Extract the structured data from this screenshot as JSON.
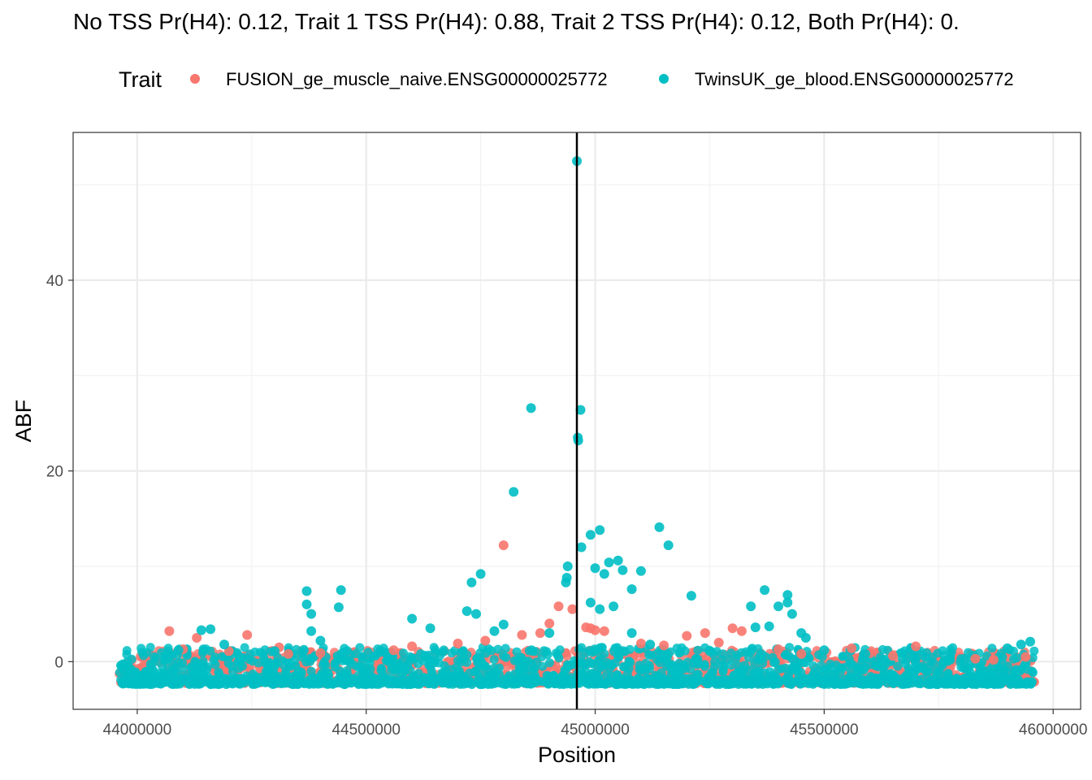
{
  "chart_data": {
    "type": "scatter",
    "title": "No TSS Pr(H4): 0.12, Trait 1 TSS Pr(H4): 0.88, Trait 2 TSS Pr(H4): 0.12, Both Pr(H4): 0.",
    "xlabel": "Position",
    "ylabel": "ABF",
    "xlim": [
      43860000,
      46060000
    ],
    "ylim": [
      -5,
      55.5
    ],
    "x_ticks": [
      44000000,
      44500000,
      45000000,
      45500000,
      46000000
    ],
    "x_tick_labels": [
      "44000000",
      "44500000",
      "45000000",
      "45500000",
      "46000000"
    ],
    "y_ticks": [
      0,
      20,
      40
    ],
    "y_tick_labels": [
      "0",
      "20",
      "40"
    ],
    "grid": true,
    "vline_x": 44960000,
    "legend": {
      "title": "Trait",
      "position": "top"
    },
    "series": [
      {
        "name": "FUSION_ge_muscle_naive.ENSG00000025772",
        "color": "#F8766D",
        "points": [
          [
            44070000,
            3.2
          ],
          [
            44130000,
            2.5
          ],
          [
            44240000,
            2.8
          ],
          [
            44310000,
            1.5
          ],
          [
            44330000,
            0.8
          ],
          [
            44560000,
            1.2
          ],
          [
            44800000,
            12.2
          ],
          [
            44840000,
            2.8
          ],
          [
            44880000,
            3.0
          ],
          [
            44900000,
            4.0
          ],
          [
            44920000,
            5.8
          ],
          [
            44950000,
            5.5
          ],
          [
            44980000,
            3.6
          ],
          [
            44990000,
            3.5
          ],
          [
            45000000,
            3.3
          ],
          [
            45020000,
            3.2
          ],
          [
            45200000,
            2.7
          ],
          [
            45240000,
            3.0
          ],
          [
            45270000,
            2.0
          ],
          [
            45300000,
            3.5
          ],
          [
            45320000,
            3.2
          ],
          [
            45560000,
            1.4
          ],
          [
            45700000,
            1.6
          ],
          [
            45830000,
            0.3
          ],
          [
            45870000,
            0.2
          ],
          [
            45940000,
            0.5
          ],
          [
            44100000,
            1.3
          ],
          [
            44200000,
            1.1
          ],
          [
            44400000,
            0.9
          ],
          [
            44600000,
            1.6
          ],
          [
            44700000,
            1.9
          ],
          [
            44760000,
            2.2
          ],
          [
            45100000,
            1.9
          ],
          [
            45150000,
            1.7
          ],
          [
            45400000,
            1.3
          ],
          [
            45450000,
            0.8
          ],
          [
            45600000,
            0.9
          ],
          [
            45650000,
            0.6
          ]
        ]
      },
      {
        "name": "TwinsUK_ge_blood.ENSG00000025772",
        "color": "#00BFC4",
        "points": [
          [
            44960000,
            52.5
          ],
          [
            44860000,
            26.6
          ],
          [
            44968000,
            26.4
          ],
          [
            44962000,
            23.5
          ],
          [
            44963000,
            23.2
          ],
          [
            44822000,
            17.8
          ],
          [
            45140000,
            14.1
          ],
          [
            45160000,
            12.2
          ],
          [
            45010000,
            13.8
          ],
          [
            44990000,
            13.3
          ],
          [
            44750000,
            9.2
          ],
          [
            44730000,
            8.3
          ],
          [
            44940000,
            10.0
          ],
          [
            44938000,
            8.8
          ],
          [
            44936000,
            8.3
          ],
          [
            45210000,
            6.9
          ],
          [
            44370000,
            7.4
          ],
          [
            44445000,
            7.5
          ],
          [
            45420000,
            7.0
          ],
          [
            45370000,
            7.5
          ],
          [
            45080000,
            7.6
          ],
          [
            44970000,
            12.0
          ],
          [
            45030000,
            10.4
          ],
          [
            45050000,
            10.6
          ],
          [
            45100000,
            9.5
          ],
          [
            45020000,
            9.2
          ],
          [
            45060000,
            9.6
          ],
          [
            45000000,
            9.8
          ],
          [
            44370000,
            6.0
          ],
          [
            44380000,
            5.0
          ],
          [
            44440000,
            5.7
          ],
          [
            45420000,
            6.2
          ],
          [
            45340000,
            5.8
          ],
          [
            45400000,
            5.8
          ],
          [
            45430000,
            5.0
          ],
          [
            44720000,
            5.3
          ],
          [
            44740000,
            5.0
          ],
          [
            44990000,
            6.2
          ],
          [
            45010000,
            5.5
          ],
          [
            45040000,
            5.8
          ],
          [
            44380000,
            3.2
          ],
          [
            44400000,
            2.2
          ],
          [
            44160000,
            3.4
          ],
          [
            44140000,
            3.3
          ],
          [
            44600000,
            4.5
          ],
          [
            44640000,
            3.5
          ],
          [
            45350000,
            3.6
          ],
          [
            45380000,
            3.7
          ],
          [
            45450000,
            3.0
          ],
          [
            45460000,
            2.5
          ],
          [
            45590000,
            0.8
          ],
          [
            45930000,
            1.8
          ],
          [
            45950000,
            2.1
          ],
          [
            44090000,
            1.2
          ],
          [
            44190000,
            1.8
          ],
          [
            44300000,
            1.1
          ],
          [
            44530000,
            1.0
          ],
          [
            44800000,
            3.9
          ],
          [
            44780000,
            3.2
          ],
          [
            44900000,
            3.0
          ],
          [
            45120000,
            1.8
          ],
          [
            45080000,
            3.0
          ],
          [
            45500000,
            1.2
          ],
          [
            45700000,
            0.3
          ],
          [
            45900000,
            1.4
          ]
        ]
      }
    ]
  }
}
